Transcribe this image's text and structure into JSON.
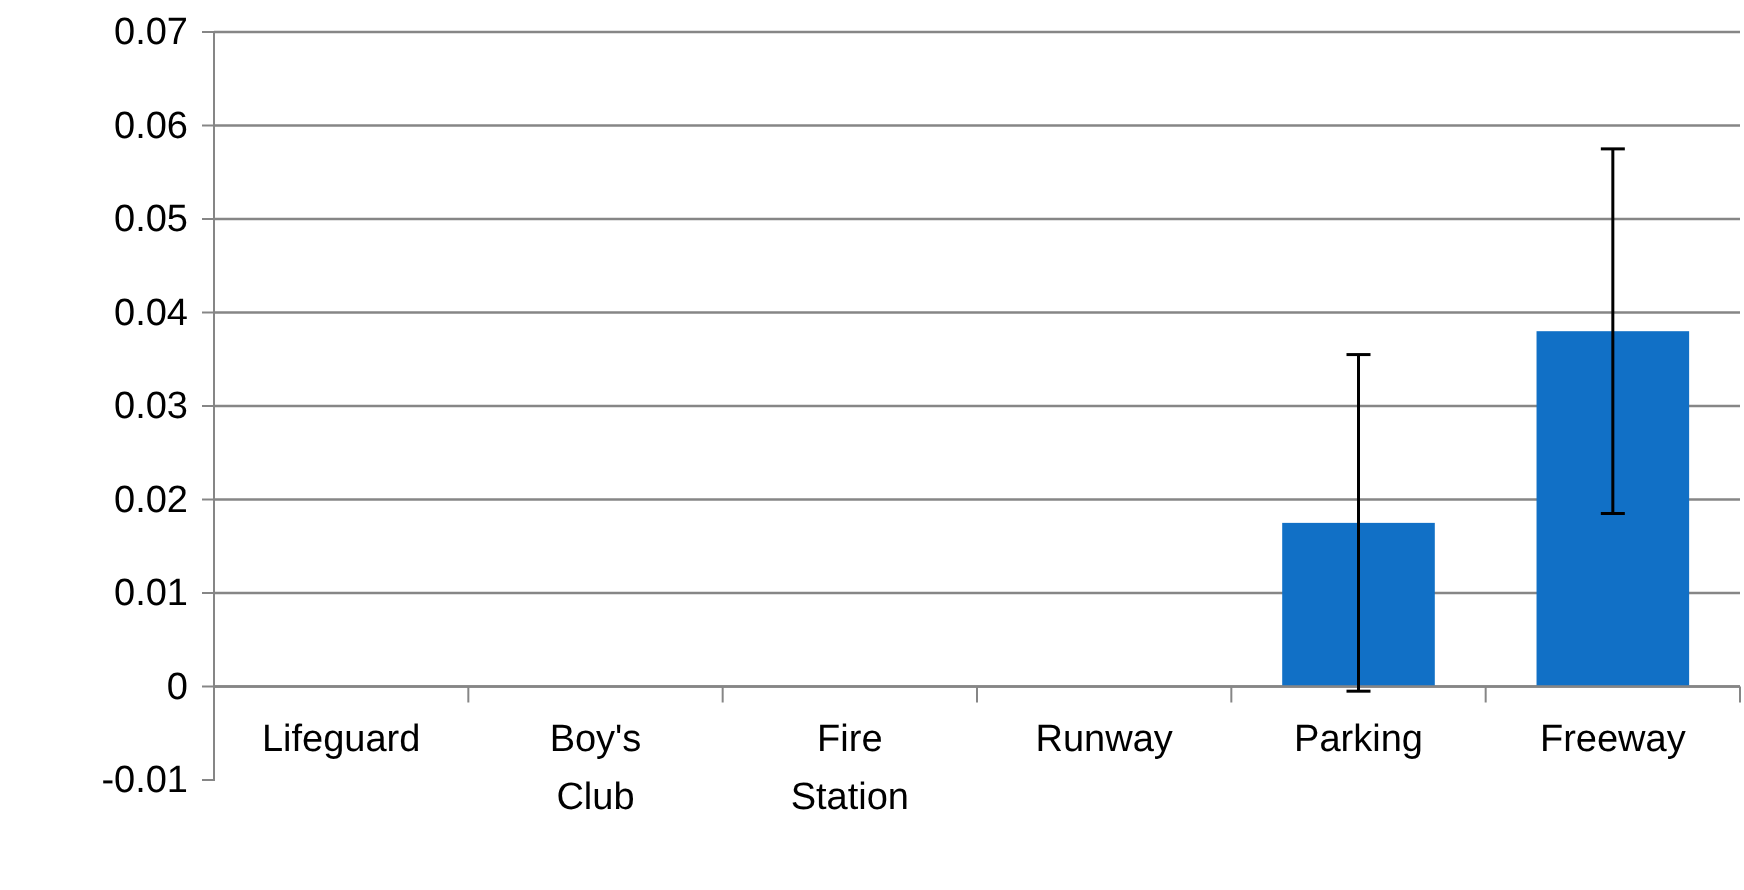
{
  "chart_data": {
    "type": "bar",
    "categories": [
      "Lifeguard",
      "Boy's Club",
      "Fire Station",
      "Runway",
      "Parking",
      "Freeway"
    ],
    "values": [
      0,
      0,
      0,
      0,
      0.0175,
      0.038
    ],
    "errors": [
      null,
      null,
      null,
      null,
      0.018,
      0.0195
    ],
    "color": "#1170c6",
    "ylim": [
      -0.01,
      0.07
    ],
    "yticks": [
      -0.01,
      0,
      0.01,
      0.02,
      0.03,
      0.04,
      0.05,
      0.06,
      0.07
    ],
    "grid": "y"
  }
}
